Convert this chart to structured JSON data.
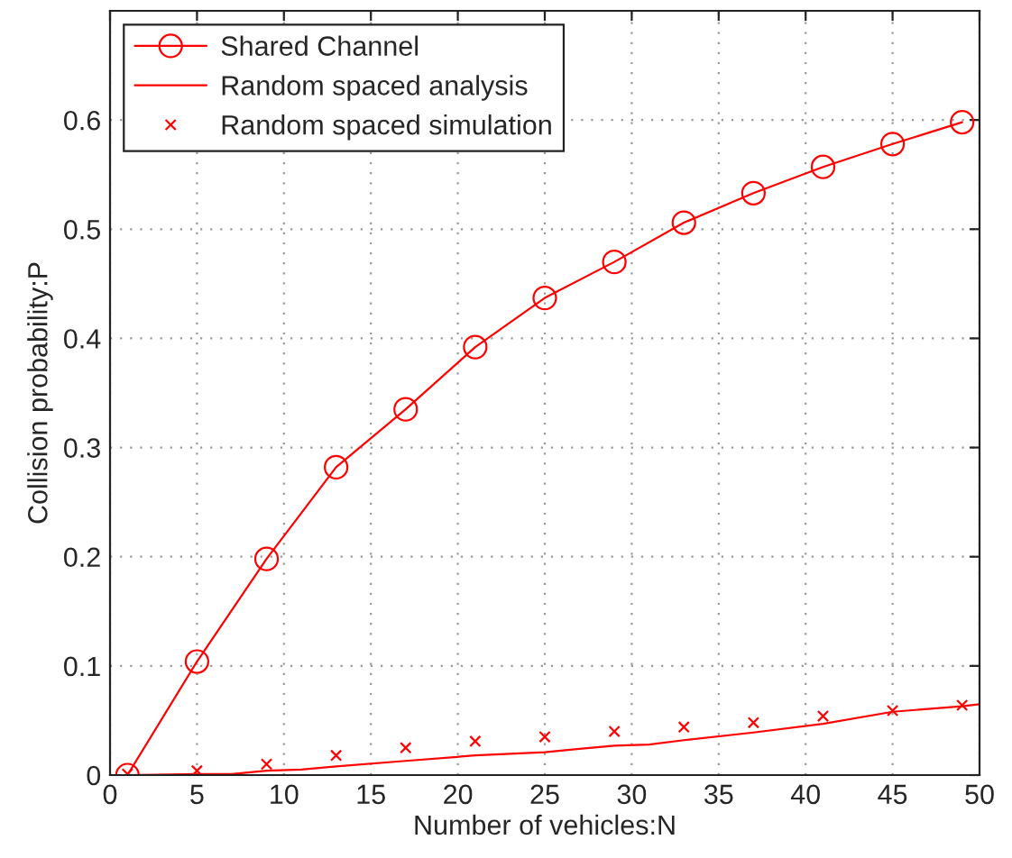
{
  "chart_data": {
    "type": "line",
    "xlabel": "Number of vehicles:N",
    "ylabel": "Collision probability:P",
    "xlim": [
      0,
      50
    ],
    "xticks": [
      0,
      5,
      10,
      15,
      20,
      25,
      30,
      35,
      40,
      45,
      50
    ],
    "ylim": [
      0,
      0.7
    ],
    "yticks": [
      0,
      0.1,
      0.2,
      0.3,
      0.4,
      0.5,
      0.6
    ],
    "grid": true,
    "legend": "top left",
    "series": [
      {
        "name": "Shared Channel",
        "color": "#ff0000",
        "marker": "circle",
        "line_style": "solid",
        "x": [
          1,
          5,
          9,
          13,
          17,
          21,
          25,
          29,
          33,
          37,
          41,
          45,
          49
        ],
        "values": [
          0,
          0.104,
          0.198,
          0.282,
          0.335,
          0.392,
          0.437,
          0.47,
          0.506,
          0.533,
          0.557,
          0.578,
          0.598
        ]
      },
      {
        "name": "Random spaced analysis",
        "color": "#ff0000",
        "marker": "none",
        "line_style": "solid",
        "x": [
          1,
          5,
          7,
          9,
          11,
          13,
          17,
          21,
          25,
          27,
          29,
          31,
          33,
          37,
          41,
          45,
          49,
          50
        ],
        "values": [
          0,
          0.001,
          0.001,
          0.004,
          0.005,
          0.008,
          0.013,
          0.018,
          0.021,
          0.024,
          0.027,
          0.028,
          0.032,
          0.039,
          0.047,
          0.058,
          0.063,
          0.065
        ]
      },
      {
        "name": "Random spaced simulation",
        "type": "scatter",
        "color": "#ff0000",
        "marker": "cross",
        "x": [
          1,
          5,
          9,
          13,
          17,
          21,
          25,
          29,
          33,
          37,
          41,
          45,
          49
        ],
        "values": [
          0.001,
          0.004,
          0.01,
          0.018,
          0.025,
          0.031,
          0.035,
          0.04,
          0.044,
          0.048,
          0.054,
          0.059,
          0.064
        ]
      }
    ]
  }
}
